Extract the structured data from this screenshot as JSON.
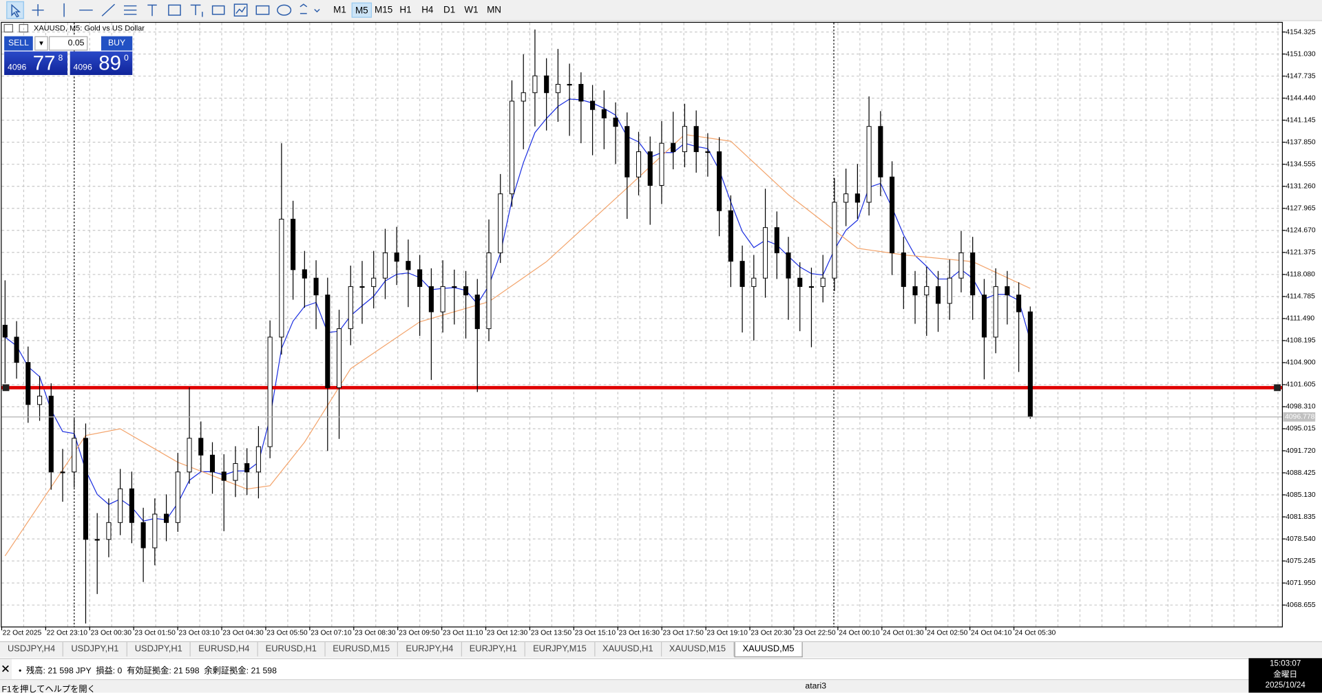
{
  "toolbar": {
    "timeframes": [
      "M1",
      "M5",
      "M15",
      "H1",
      "H4",
      "D1",
      "W1",
      "MN"
    ],
    "active_timeframe_index": 1
  },
  "one_click": {
    "sell": "SELL",
    "buy": "BUY",
    "lot": "0.05",
    "bid": {
      "big": "4096",
      "pips": "77",
      "point": "8"
    },
    "ask": {
      "big": "4096",
      "pips": "89",
      "point": "0"
    }
  },
  "chart_data": {
    "type": "candlestick",
    "title": "XAUUSD, M5:  Gold vs US Dollar",
    "x_labels": [
      "22 Oct 2025",
      "22 Oct 23:10",
      "23 Oct 00:30",
      "23 Oct 01:50",
      "23 Oct 03:10",
      "23 Oct 04:30",
      "23 Oct 05:50",
      "23 Oct 07:10",
      "23 Oct 08:30",
      "23 Oct 09:50",
      "23 Oct 11:10",
      "23 Oct 12:30",
      "23 Oct 13:50",
      "23 Oct 15:10",
      "23 Oct 16:30",
      "23 Oct 17:50",
      "23 Oct 19:10",
      "23 Oct 20:30",
      "23 Oct 22:50",
      "24 Oct 00:10",
      "24 Oct 01:30",
      "24 Oct 02:50",
      "24 Oct 04:10",
      "24 Oct 05:30"
    ],
    "candles": [
      [
        4110.5,
        4117.2,
        4101.8,
        4108.71
      ],
      [
        4108.71,
        4111.1,
        4102.5,
        4104.93
      ],
      [
        4104.93,
        4107.3,
        4095.9,
        4098.63
      ],
      [
        4098.63,
        4102.9,
        4096.2,
        4099.89
      ],
      [
        4099.89,
        4101.8,
        4085.9,
        4088.55
      ],
      [
        4088.55,
        4092.0,
        4084.1,
        4088.55
      ],
      [
        4088.55,
        4096.5,
        4086.2,
        4093.59
      ],
      [
        4093.59,
        4095.8,
        4065.9,
        4078.47
      ],
      [
        4078.47,
        4082.4,
        4070.3,
        4078.47
      ],
      [
        4078.47,
        4084.6,
        4075.8,
        4080.99
      ],
      [
        4080.99,
        4089.0,
        4079.1,
        4086.03
      ],
      [
        4086.03,
        4088.6,
        4077.9,
        4080.99
      ],
      [
        4080.99,
        4083.2,
        4072.1,
        4077.21
      ],
      [
        4077.21,
        4084.6,
        4074.6,
        4082.25
      ],
      [
        4082.25,
        4085.2,
        4078.2,
        4080.99
      ],
      [
        4080.99,
        4091.4,
        4079.6,
        4088.55
      ],
      [
        4088.55,
        4101.2,
        4086.8,
        4093.59
      ],
      [
        4093.59,
        4096.1,
        4088.6,
        4091.07
      ],
      [
        4091.07,
        4093.0,
        4085.3,
        4088.55
      ],
      [
        4088.55,
        4091.2,
        4079.7,
        4087.29
      ],
      [
        4087.29,
        4092.4,
        4084.8,
        4089.81
      ],
      [
        4089.81,
        4092.1,
        4085.1,
        4088.55
      ],
      [
        4088.55,
        4095.4,
        4084.6,
        4092.33
      ],
      [
        4092.33,
        4111.2,
        4090.6,
        4108.71
      ],
      [
        4108.71,
        4137.7,
        4106.1,
        4126.35
      ],
      [
        4126.35,
        4129.1,
        4114.3,
        4118.79
      ],
      [
        4118.79,
        4121.6,
        4113.1,
        4117.53
      ],
      [
        4117.53,
        4120.2,
        4109.9,
        4115.01
      ],
      [
        4115.01,
        4117.6,
        4091.7,
        4101.15
      ],
      [
        4101.15,
        4112.8,
        4093.5,
        4109.97
      ],
      [
        4109.97,
        4119.4,
        4107.5,
        4116.27
      ],
      [
        4116.27,
        4120.1,
        4110.7,
        4116.27
      ],
      [
        4116.27,
        4121.6,
        4113.0,
        4117.53
      ],
      [
        4117.53,
        4124.9,
        4114.4,
        4121.31
      ],
      [
        4121.31,
        4125.2,
        4116.5,
        4120.05
      ],
      [
        4120.05,
        4123.3,
        4113.2,
        4118.79
      ],
      [
        4118.79,
        4121.0,
        4108.9,
        4116.27
      ],
      [
        4116.27,
        4119.0,
        4102.3,
        4112.49
      ],
      [
        4112.49,
        4120.2,
        4109.4,
        4116.27
      ],
      [
        4116.27,
        4118.8,
        4110.6,
        4116.27
      ],
      [
        4116.27,
        4118.6,
        4108.5,
        4115.01
      ],
      [
        4115.01,
        4117.4,
        4100.5,
        4109.97
      ],
      [
        4109.97,
        4126.3,
        4108.1,
        4121.31
      ],
      [
        4121.31,
        4133.1,
        4119.8,
        4130.13
      ],
      [
        4130.13,
        4147.1,
        4128.2,
        4143.99
      ],
      [
        4143.99,
        4151.0,
        4136.8,
        4145.25
      ],
      [
        4145.25,
        4154.7,
        4140.2,
        4147.77
      ],
      [
        4147.77,
        4150.4,
        4139.6,
        4145.25
      ],
      [
        4145.25,
        4151.8,
        4140.9,
        4146.51
      ],
      [
        4146.51,
        4149.6,
        4138.8,
        4146.51
      ],
      [
        4146.51,
        4148.3,
        4137.7,
        4143.99
      ],
      [
        4143.99,
        4146.4,
        4135.9,
        4142.73
      ],
      [
        4142.73,
        4145.6,
        4136.8,
        4141.47
      ],
      [
        4141.47,
        4143.8,
        4134.6,
        4140.21
      ],
      [
        4140.21,
        4142.3,
        4126.4,
        4132.65
      ],
      [
        4132.65,
        4139.4,
        4129.9,
        4136.43
      ],
      [
        4136.43,
        4138.7,
        4125.5,
        4131.39
      ],
      [
        4131.39,
        4141.0,
        4128.6,
        4137.69
      ],
      [
        4137.69,
        4142.4,
        4133.8,
        4136.43
      ],
      [
        4136.43,
        4143.6,
        4134.1,
        4140.21
      ],
      [
        4140.21,
        4142.6,
        4133.3,
        4136.43
      ],
      [
        4136.43,
        4139.2,
        4132.7,
        4136.43
      ],
      [
        4136.43,
        4138.6,
        4123.8,
        4127.61
      ],
      [
        4127.61,
        4129.9,
        4116.2,
        4120.05
      ],
      [
        4120.05,
        4122.4,
        4109.4,
        4116.27
      ],
      [
        4116.27,
        4121.0,
        4108.2,
        4117.53
      ],
      [
        4117.53,
        4130.9,
        4114.6,
        4125.09
      ],
      [
        4125.09,
        4127.5,
        4117.4,
        4121.31
      ],
      [
        4121.31,
        4123.7,
        4111.3,
        4117.53
      ],
      [
        4117.53,
        4119.9,
        4109.6,
        4116.27
      ],
      [
        4116.27,
        4119.1,
        4107.2,
        4116.27
      ],
      [
        4116.27,
        4121.0,
        4113.9,
        4117.53
      ],
      [
        4117.53,
        4132.5,
        4115.6,
        4128.87
      ],
      [
        4128.87,
        4133.9,
        4125.3,
        4130.13
      ],
      [
        4130.13,
        4134.6,
        4126.4,
        4128.87
      ],
      [
        4128.87,
        4144.7,
        4126.9,
        4140.21
      ],
      [
        4140.21,
        4142.5,
        4129.8,
        4132.65
      ],
      [
        4132.65,
        4135.0,
        4118.0,
        4121.31
      ],
      [
        4121.31,
        4123.7,
        4112.9,
        4116.27
      ],
      [
        4116.27,
        4118.6,
        4110.7,
        4115.01
      ],
      [
        4115.01,
        4119.2,
        4108.9,
        4116.27
      ],
      [
        4116.27,
        4118.6,
        4109.5,
        4113.75
      ],
      [
        4113.75,
        4120.3,
        4111.3,
        4117.53
      ],
      [
        4117.53,
        4124.6,
        4115.4,
        4121.31
      ],
      [
        4121.31,
        4123.7,
        4111.3,
        4115.01
      ],
      [
        4115.01,
        4117.4,
        4102.4,
        4108.71
      ],
      [
        4108.71,
        4119.0,
        4106.3,
        4116.27
      ],
      [
        4116.27,
        4118.6,
        4110.6,
        4115.01
      ],
      [
        4115.01,
        4116.9,
        4103.5,
        4112.49
      ],
      [
        4112.49,
        4113.3,
        4096.5,
        4096.778
      ]
    ],
    "indicators": [
      {
        "color": "#1c2fe0",
        "values": [
          4108.7,
          4107.4,
          4104.3,
          4102.8,
          4097.8,
          4094.6,
          4094.3,
          4088.8,
          4085.2,
          4083.7,
          4084.5,
          4083.3,
          4081.2,
          4081.6,
          4081.4,
          4083.9,
          4087.3,
          4088.6,
          4088.6,
          4088.1,
          4088.7,
          4088.7,
          4090,
          4096.6,
          4107,
          4111.1,
          4113.3,
          4113.9,
          4109.4,
          4109.6,
          4111.9,
          4113.4,
          4114.8,
          4117.1,
          4118.1,
          4118.3,
          4117.6,
          4115.8,
          4116,
          4116.1,
          4115.7,
          4113.7,
          4116.4,
          4121.2,
          4129.2,
          4134.8,
          4139.3,
          4141.4,
          4143.2,
          4144.3,
          4144.2,
          4143.7,
          4142.9,
          4141.9,
          4138.7,
          4137.9,
          4135.6,
          4136.3,
          4136.3,
          4137.7,
          4137.2,
          4136.9,
          4133.7,
          4128.9,
          4124.5,
          4122.1,
          4123.2,
          4122.5,
          4120.8,
          4119.2,
          4118.2,
          4118,
          4121.8,
          4124.7,
          4126.2,
          4131.1,
          4131.7,
          4128.1,
          4124,
          4120.9,
          4119.3,
          4117.4,
          4117.4,
          4118.8,
          4117.5,
          4114.4,
          4115.1,
          4115.1,
          4114.2,
          4108.2
        ]
      },
      {
        "color": "#f3a46c",
        "x": [
          0,
          7,
          10,
          15,
          21,
          23,
          26,
          30,
          36,
          42,
          47,
          54,
          59,
          63,
          68,
          74,
          78,
          84,
          89
        ],
        "values": [
          4076,
          4094,
          4095,
          4090,
          4086,
          4086.5,
          4093,
          4104,
          4111,
          4114,
          4120,
          4131,
          4139,
          4138,
          4130,
          4122,
          4121,
          4120,
          4116
        ]
      }
    ],
    "bull_color": "#ffffff",
    "bear_color": "#000000",
    "hline": {
      "value": 4101.15,
      "color": "#e00000"
    },
    "ylim": [
      4065.38,
      4155.71
    ],
    "yticks": [
      4154.325,
      {
        "value": 4151.03,
        "label": "4151.030"
      },
      4147.735,
      {
        "value": 4144.44,
        "label": "4144.440"
      },
      4141.145,
      {
        "value": 4137.85,
        "label": "4137.850"
      },
      4134.555,
      {
        "value": 4131.26,
        "label": "4131.260"
      },
      4127.965,
      {
        "value": 4124.67,
        "label": "4124.670"
      },
      4121.375,
      {
        "value": 4118.08,
        "label": "4118.080"
      },
      4114.785,
      {
        "value": 4111.49,
        "label": "4111.490"
      },
      4108.195,
      {
        "value": 4104.9,
        "label": "4104.900"
      },
      4101.605,
      {
        "value": 4098.31,
        "label": "4098.310"
      },
      4095.015,
      {
        "value": 4091.72,
        "label": "4091.720"
      },
      4088.425,
      {
        "value": 4085.13,
        "label": "4085.130"
      },
      4081.835,
      {
        "value": 4078.54,
        "label": "4078.540"
      },
      4075.245,
      {
        "value": 4071.95,
        "label": "4071.950"
      },
      4068.655
    ],
    "grid": true
  },
  "tabs": {
    "items": [
      "USDJPY,H4",
      "USDJPY,H1",
      "USDJPY,H1",
      "EURUSD,H4",
      "EURUSD,H1",
      "EURUSD,M15",
      "EURJPY,H4",
      "EURJPY,H1",
      "EURJPY,M15",
      "XAUUSD,H1",
      "XAUUSD,M15",
      "XAUUSD,M5"
    ],
    "active": 11
  },
  "toolbox": {
    "account": "•  残高: 21 598 JPY  損益: 0  有効証拠金: 21 598  余剰証拠金: 21 598"
  },
  "status": {
    "help": "F1を押してヘルプを開く",
    "profile": "atari3"
  },
  "clock": {
    "time": "15:03:07",
    "weekday": "金曜日",
    "date": "2025/10/24"
  }
}
